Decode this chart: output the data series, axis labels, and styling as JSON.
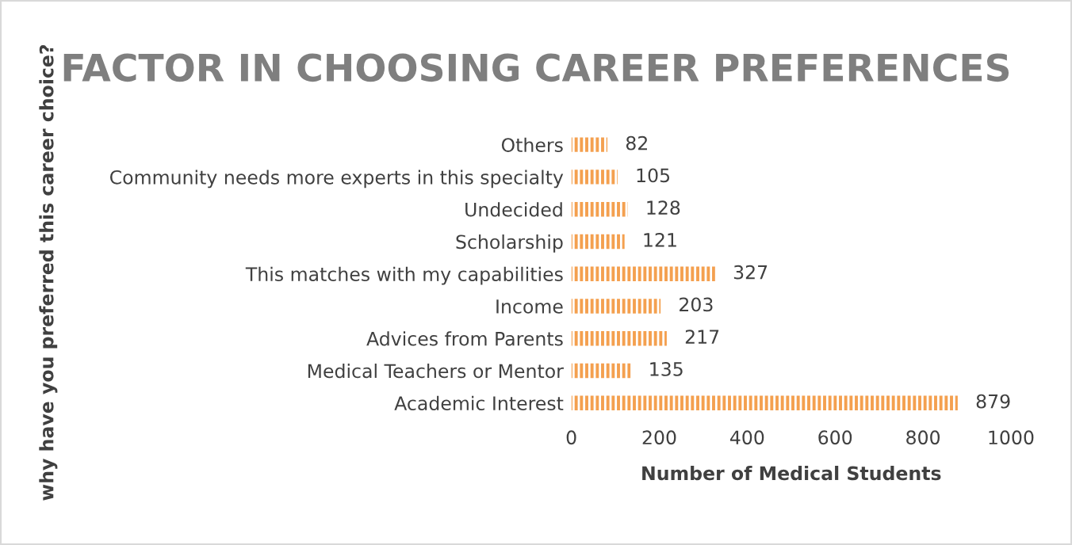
{
  "chart_data": {
    "type": "bar",
    "orientation": "horizontal",
    "title": "FACTOR IN CHOOSING CAREER PREFERENCES",
    "xlabel": "Number of Medical Students",
    "ylabel": "why have you preferred this career choice?",
    "categories": [
      "Others",
      "Community needs more experts in this specialty",
      "Undecided",
      "Scholarship",
      "This matches with my capabilities",
      "Income",
      "Advices from Parents",
      "Medical Teachers or Mentor",
      "Academic Interest"
    ],
    "values": [
      82,
      105,
      128,
      121,
      327,
      203,
      217,
      135,
      879
    ],
    "color": "#f4a04f",
    "xlim": [
      0,
      1000
    ],
    "xticks": [
      0,
      200,
      400,
      600,
      800,
      1000
    ],
    "grid": false,
    "data_labels": true,
    "legend": false
  }
}
